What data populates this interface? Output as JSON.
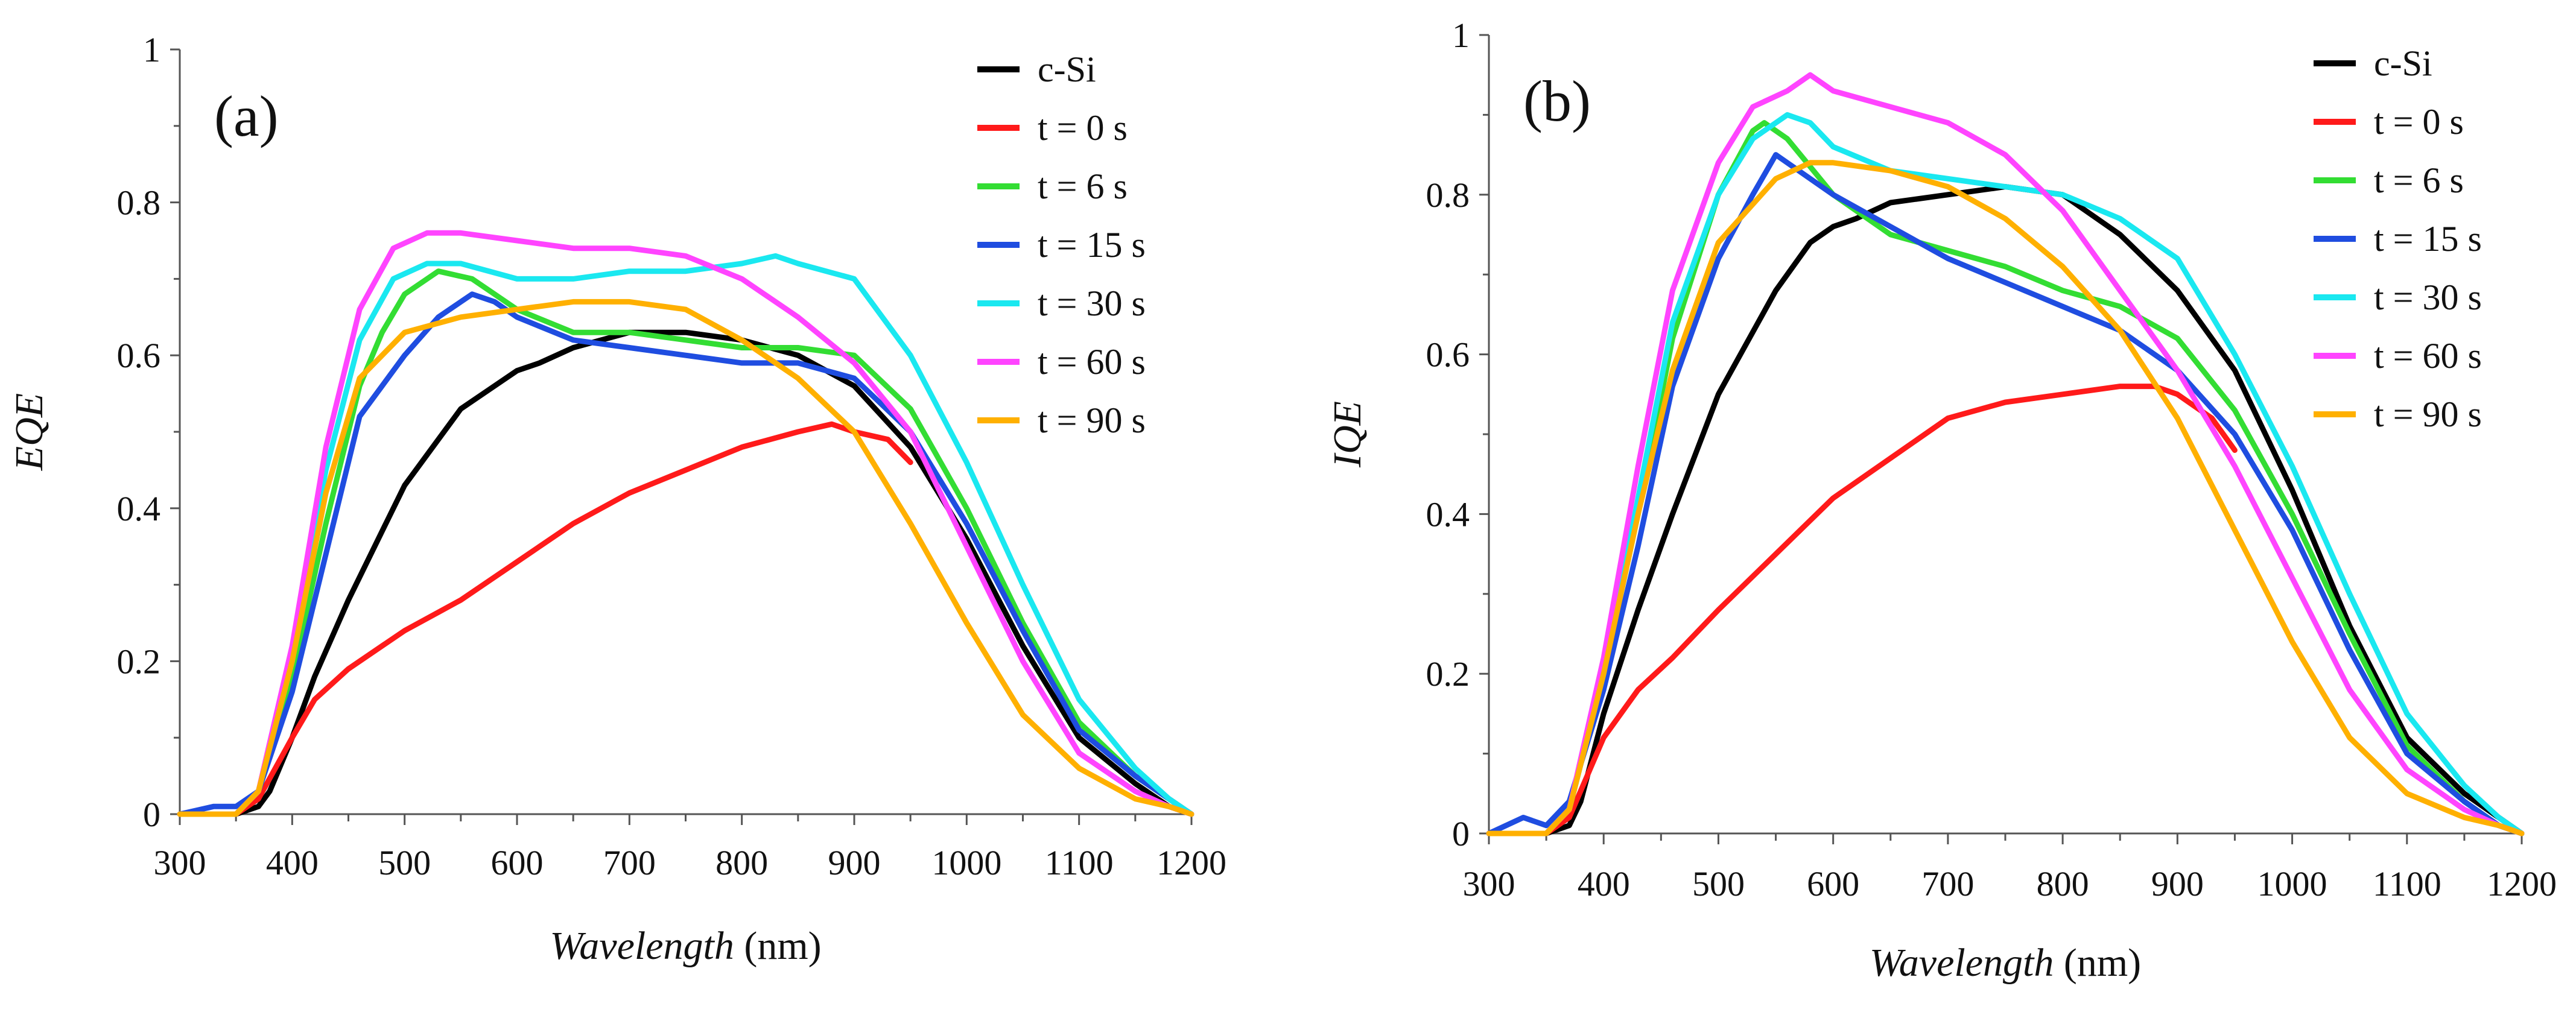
{
  "chart_data": [
    {
      "type": "line",
      "panel_label": "(a)",
      "title": "",
      "xlabel": "Wavelength",
      "xlabel_unit": "(nm)",
      "ylabel": "EQE",
      "xlim": [
        300,
        1200
      ],
      "ylim": [
        0,
        1
      ],
      "x_ticks": [
        300,
        400,
        500,
        600,
        700,
        800,
        900,
        1000,
        1100,
        1200
      ],
      "x_tick_labels": [
        "300",
        "400",
        "500",
        "600",
        "700",
        "800",
        "900",
        "1000",
        "1100",
        "1200"
      ],
      "y_ticks": [
        0,
        0.2,
        0.4,
        0.6,
        0.8,
        1
      ],
      "y_tick_labels": [
        "0",
        "0.2",
        "0.4",
        "0.6",
        "0.8",
        "1"
      ],
      "grid": false,
      "legend_position": "top-right",
      "series": [
        {
          "name": "c-Si",
          "color": "#000000",
          "x": [
            300,
            350,
            370,
            380,
            400,
            420,
            450,
            480,
            500,
            550,
            600,
            620,
            650,
            700,
            750,
            800,
            850,
            900,
            950,
            1000,
            1050,
            1100,
            1150,
            1180,
            1200
          ],
          "y": [
            0,
            0,
            0.01,
            0.03,
            0.1,
            0.18,
            0.28,
            0.37,
            0.43,
            0.53,
            0.58,
            0.59,
            0.61,
            0.63,
            0.63,
            0.62,
            0.6,
            0.56,
            0.48,
            0.36,
            0.22,
            0.1,
            0.04,
            0.01,
            0
          ]
        },
        {
          "name": "t = 0 s",
          "color": "#ff1a1a",
          "x": [
            300,
            350,
            370,
            400,
            420,
            450,
            480,
            500,
            550,
            600,
            650,
            700,
            750,
            800,
            850,
            880,
            900,
            930,
            950
          ],
          "y": [
            0,
            0,
            0.02,
            0.1,
            0.15,
            0.19,
            0.22,
            0.24,
            0.28,
            0.33,
            0.38,
            0.42,
            0.45,
            0.48,
            0.5,
            0.51,
            0.5,
            0.49,
            0.46
          ]
        },
        {
          "name": "t = 6 s",
          "color": "#33dd33",
          "x": [
            300,
            350,
            370,
            400,
            430,
            460,
            480,
            500,
            530,
            560,
            600,
            650,
            700,
            750,
            800,
            850,
            900,
            950,
            1000,
            1050,
            1100,
            1150,
            1180,
            1200
          ],
          "y": [
            0,
            0,
            0.03,
            0.18,
            0.38,
            0.56,
            0.63,
            0.68,
            0.71,
            0.7,
            0.66,
            0.63,
            0.63,
            0.62,
            0.61,
            0.61,
            0.6,
            0.53,
            0.4,
            0.25,
            0.12,
            0.05,
            0.02,
            0
          ]
        },
        {
          "name": "t = 15 s",
          "color": "#1f4de0",
          "x": [
            300,
            330,
            350,
            370,
            400,
            430,
            460,
            500,
            530,
            560,
            580,
            600,
            650,
            700,
            750,
            800,
            850,
            900,
            950,
            1000,
            1050,
            1100,
            1150,
            1180,
            1200
          ],
          "y": [
            0,
            0.01,
            0.01,
            0.03,
            0.16,
            0.34,
            0.52,
            0.6,
            0.65,
            0.68,
            0.67,
            0.65,
            0.62,
            0.61,
            0.6,
            0.59,
            0.59,
            0.57,
            0.5,
            0.38,
            0.24,
            0.11,
            0.05,
            0.02,
            0
          ]
        },
        {
          "name": "t = 30 s",
          "color": "#1ae8f0",
          "x": [
            300,
            350,
            370,
            400,
            430,
            460,
            490,
            520,
            550,
            600,
            650,
            700,
            750,
            800,
            830,
            850,
            900,
            950,
            1000,
            1050,
            1100,
            1150,
            1180,
            1200
          ],
          "y": [
            0,
            0,
            0.03,
            0.2,
            0.45,
            0.62,
            0.7,
            0.72,
            0.72,
            0.7,
            0.7,
            0.71,
            0.71,
            0.72,
            0.73,
            0.72,
            0.7,
            0.6,
            0.46,
            0.3,
            0.15,
            0.06,
            0.02,
            0
          ]
        },
        {
          "name": "t = 60 s",
          "color": "#ff44ff",
          "x": [
            300,
            350,
            370,
            400,
            430,
            460,
            490,
            520,
            550,
            600,
            650,
            700,
            750,
            800,
            850,
            900,
            950,
            1000,
            1050,
            1100,
            1150,
            1180,
            1200
          ],
          "y": [
            0,
            0,
            0.03,
            0.22,
            0.48,
            0.66,
            0.74,
            0.76,
            0.76,
            0.75,
            0.74,
            0.74,
            0.73,
            0.7,
            0.65,
            0.59,
            0.5,
            0.35,
            0.2,
            0.08,
            0.03,
            0.01,
            0
          ]
        },
        {
          "name": "t = 90 s",
          "color": "#ffb000",
          "x": [
            300,
            350,
            370,
            400,
            430,
            460,
            500,
            550,
            600,
            650,
            700,
            750,
            800,
            850,
            900,
            950,
            1000,
            1050,
            1100,
            1150,
            1180,
            1200
          ],
          "y": [
            0,
            0,
            0.03,
            0.2,
            0.42,
            0.57,
            0.63,
            0.65,
            0.66,
            0.67,
            0.67,
            0.66,
            0.62,
            0.57,
            0.5,
            0.38,
            0.25,
            0.13,
            0.06,
            0.02,
            0.01,
            0
          ]
        }
      ]
    },
    {
      "type": "line",
      "panel_label": "(b)",
      "title": "",
      "xlabel": "Wavelength",
      "xlabel_unit": "(nm)",
      "ylabel": "IQE",
      "xlim": [
        300,
        1200
      ],
      "ylim": [
        0,
        1
      ],
      "x_ticks": [
        300,
        400,
        500,
        600,
        700,
        800,
        900,
        1000,
        1100,
        1200
      ],
      "x_tick_labels": [
        "300",
        "400",
        "500",
        "600",
        "700",
        "800",
        "900",
        "1000",
        "1100",
        "1200"
      ],
      "y_ticks": [
        0,
        0.2,
        0.4,
        0.6,
        0.8,
        1
      ],
      "y_tick_labels": [
        "0",
        "0.2",
        "0.4",
        "0.6",
        "0.8",
        "1"
      ],
      "grid": false,
      "legend_position": "top-right",
      "series": [
        {
          "name": "c-Si",
          "color": "#000000",
          "x": [
            300,
            350,
            370,
            380,
            400,
            430,
            460,
            500,
            550,
            580,
            600,
            620,
            650,
            700,
            750,
            800,
            850,
            900,
            950,
            1000,
            1050,
            1100,
            1150,
            1180,
            1200
          ],
          "y": [
            0,
            0,
            0.01,
            0.04,
            0.15,
            0.28,
            0.4,
            0.55,
            0.68,
            0.74,
            0.76,
            0.77,
            0.79,
            0.8,
            0.81,
            0.8,
            0.75,
            0.68,
            0.58,
            0.43,
            0.26,
            0.12,
            0.05,
            0.02,
            0
          ]
        },
        {
          "name": "t = 0 s",
          "color": "#ff1a1a",
          "x": [
            300,
            350,
            370,
            400,
            430,
            460,
            500,
            550,
            600,
            650,
            700,
            750,
            800,
            850,
            880,
            900,
            930,
            950
          ],
          "y": [
            0,
            0,
            0.02,
            0.12,
            0.18,
            0.22,
            0.28,
            0.35,
            0.42,
            0.47,
            0.52,
            0.54,
            0.55,
            0.56,
            0.56,
            0.55,
            0.52,
            0.48
          ]
        },
        {
          "name": "t = 6 s",
          "color": "#33dd33",
          "x": [
            300,
            350,
            370,
            400,
            430,
            460,
            500,
            530,
            540,
            560,
            600,
            650,
            700,
            750,
            800,
            850,
            900,
            950,
            1000,
            1050,
            1100,
            1150,
            1180,
            1200
          ],
          "y": [
            0,
            0,
            0.03,
            0.2,
            0.4,
            0.62,
            0.8,
            0.88,
            0.89,
            0.87,
            0.8,
            0.75,
            0.73,
            0.71,
            0.68,
            0.66,
            0.62,
            0.53,
            0.4,
            0.25,
            0.11,
            0.04,
            0.01,
            0
          ]
        },
        {
          "name": "t = 15 s",
          "color": "#1f4de0",
          "x": [
            300,
            330,
            350,
            370,
            400,
            430,
            460,
            500,
            530,
            550,
            570,
            600,
            650,
            700,
            750,
            800,
            850,
            900,
            950,
            1000,
            1050,
            1100,
            1150,
            1180,
            1200
          ],
          "y": [
            0,
            0.02,
            0.01,
            0.04,
            0.18,
            0.36,
            0.56,
            0.72,
            0.8,
            0.85,
            0.83,
            0.8,
            0.76,
            0.72,
            0.69,
            0.66,
            0.63,
            0.58,
            0.5,
            0.38,
            0.23,
            0.1,
            0.04,
            0.01,
            0
          ]
        },
        {
          "name": "t = 30 s",
          "color": "#1ae8f0",
          "x": [
            300,
            350,
            370,
            400,
            430,
            460,
            500,
            530,
            560,
            580,
            600,
            650,
            700,
            750,
            800,
            850,
            900,
            950,
            1000,
            1050,
            1100,
            1150,
            1180,
            1200
          ],
          "y": [
            0,
            0,
            0.03,
            0.2,
            0.42,
            0.64,
            0.8,
            0.87,
            0.9,
            0.89,
            0.86,
            0.83,
            0.82,
            0.81,
            0.8,
            0.77,
            0.72,
            0.6,
            0.46,
            0.3,
            0.15,
            0.06,
            0.02,
            0
          ]
        },
        {
          "name": "t = 60 s",
          "color": "#ff44ff",
          "x": [
            300,
            350,
            370,
            400,
            430,
            460,
            500,
            530,
            560,
            580,
            600,
            650,
            700,
            750,
            800,
            850,
            900,
            950,
            1000,
            1050,
            1100,
            1150,
            1180,
            1200
          ],
          "y": [
            0,
            0,
            0.03,
            0.22,
            0.46,
            0.68,
            0.84,
            0.91,
            0.93,
            0.95,
            0.93,
            0.91,
            0.89,
            0.85,
            0.78,
            0.68,
            0.58,
            0.46,
            0.32,
            0.18,
            0.08,
            0.03,
            0.01,
            0
          ]
        },
        {
          "name": "t = 90 s",
          "color": "#ffb000",
          "x": [
            300,
            350,
            370,
            400,
            430,
            460,
            500,
            550,
            580,
            600,
            650,
            700,
            750,
            800,
            850,
            900,
            950,
            1000,
            1050,
            1100,
            1150,
            1180,
            1200
          ],
          "y": [
            0,
            0,
            0.03,
            0.2,
            0.4,
            0.58,
            0.74,
            0.82,
            0.84,
            0.84,
            0.83,
            0.81,
            0.77,
            0.71,
            0.63,
            0.52,
            0.38,
            0.24,
            0.12,
            0.05,
            0.02,
            0.01,
            0
          ]
        }
      ]
    }
  ]
}
